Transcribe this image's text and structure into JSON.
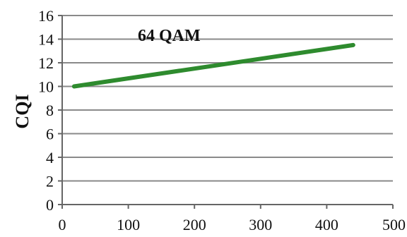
{
  "chart_data": {
    "type": "line",
    "title": "",
    "xlabel": "",
    "ylabel": "CQI",
    "xlim": [
      0,
      500
    ],
    "ylim": [
      0,
      16
    ],
    "x_ticks": [
      "0",
      "100",
      "200",
      "300",
      "400",
      "500"
    ],
    "y_ticks": [
      "0",
      "2",
      "4",
      "6",
      "8",
      "10",
      "12",
      "14",
      "16"
    ],
    "grid": true,
    "legend": "none",
    "annotations": [
      "64 QAM"
    ],
    "series": [
      {
        "color": "#2e8b2e",
        "x": [
          18,
          440
        ],
        "y": [
          10.0,
          13.5
        ]
      }
    ]
  }
}
